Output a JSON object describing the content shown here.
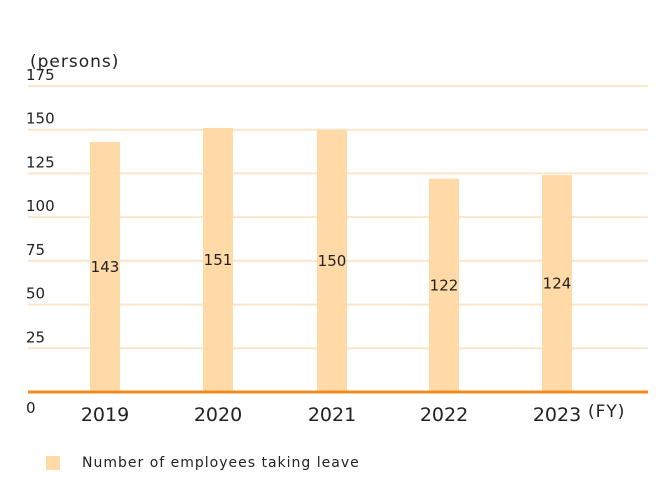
{
  "chart_data": {
    "type": "bar",
    "categories": [
      "2019",
      "2020",
      "2021",
      "2022",
      "2023"
    ],
    "series": [
      {
        "name": "Number of employees taking leave",
        "values": [
          143,
          151,
          150,
          122,
          124
        ]
      }
    ],
    "ylabel": "(persons)",
    "xlabel": "(FY)",
    "ylim": [
      0,
      175
    ],
    "yticks": [
      0,
      25,
      50,
      75,
      100,
      125,
      150,
      175
    ],
    "grid": true,
    "legend_position": "bottom-left",
    "colors": {
      "bar": "#ffd9a6",
      "grid": "#fbe6cc",
      "axis": "#f08c1e"
    }
  }
}
